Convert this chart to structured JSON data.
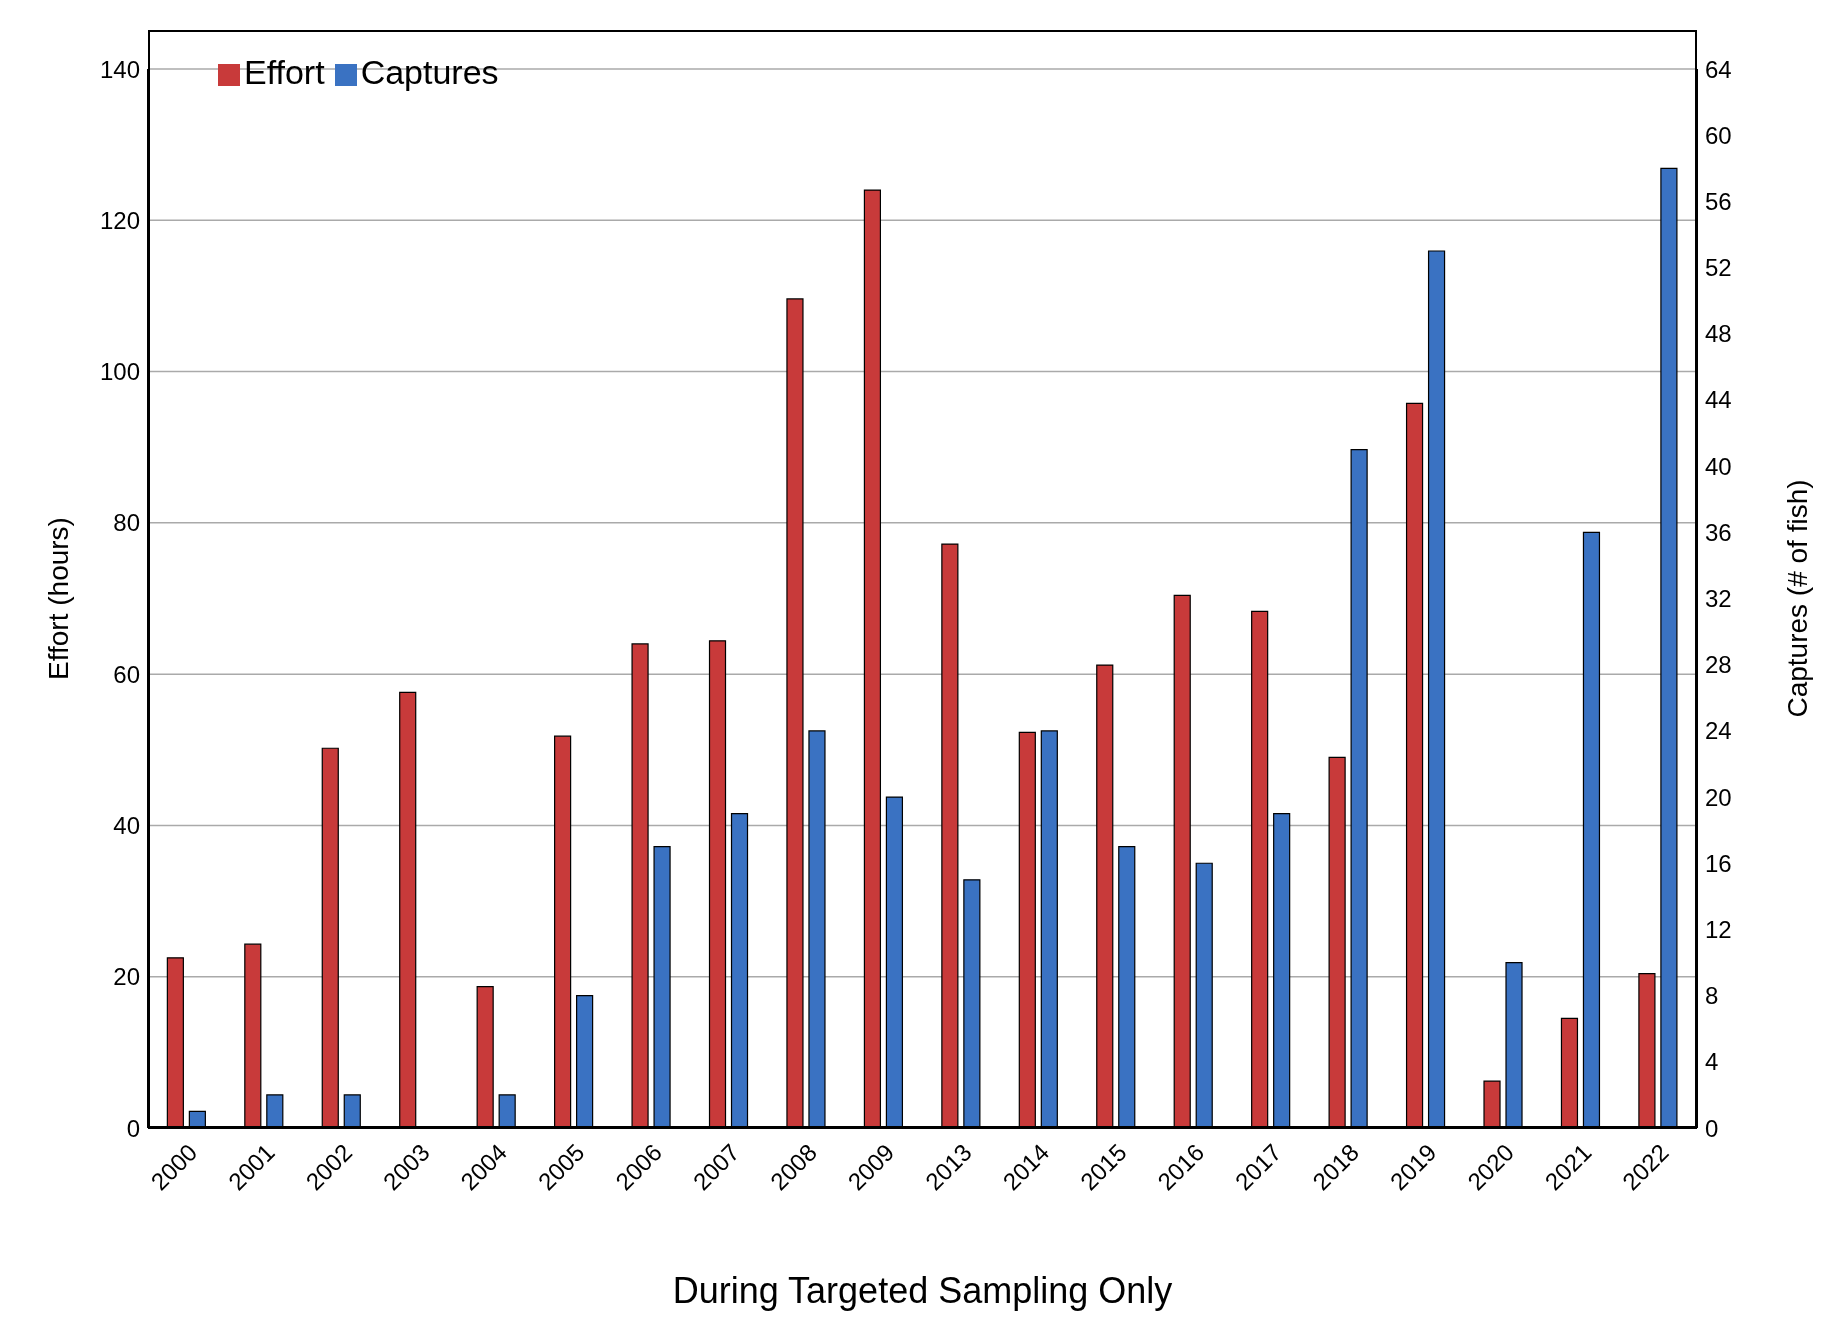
{
  "chart_data": {
    "type": "bar",
    "xlabel": "During Targeted Sampling Only",
    "ylabel": "Effort (hours)",
    "y2label": "Captures (# of fish)",
    "categories": [
      "2000",
      "2001",
      "2002",
      "2003",
      "2004",
      "2005",
      "2006",
      "2007",
      "2008",
      "2009",
      "2013",
      "2014",
      "2015",
      "2016",
      "2017",
      "2018",
      "2019",
      "2020",
      "2021",
      "2022"
    ],
    "series": [
      {
        "name": "Effort",
        "color": "#c83a3a",
        "values": [
          22.5,
          24.3,
          50.2,
          57.6,
          18.7,
          51.8,
          64,
          64.4,
          109.6,
          124,
          77.2,
          52.3,
          61.2,
          70.4,
          68.3,
          49,
          95.8,
          6.2,
          14.5,
          20.4
        ]
      },
      {
        "name": "Captures",
        "color": "#3a72c2",
        "axis": "y2",
        "values": [
          1,
          2,
          2,
          0,
          2,
          8,
          17,
          19,
          24,
          20,
          15,
          24,
          17,
          16,
          19,
          41,
          53,
          10,
          36,
          58
        ]
      }
    ],
    "ylim": [
      0,
      140
    ],
    "yticks": [
      0,
      20,
      40,
      60,
      80,
      100,
      120,
      140
    ],
    "y2lim": [
      0,
      64
    ],
    "y2ticks": [
      0,
      4,
      8,
      12,
      16,
      20,
      24,
      28,
      32,
      36,
      40,
      44,
      48,
      52,
      56,
      60,
      64
    ],
    "grid": "y",
    "legend": "top left"
  }
}
